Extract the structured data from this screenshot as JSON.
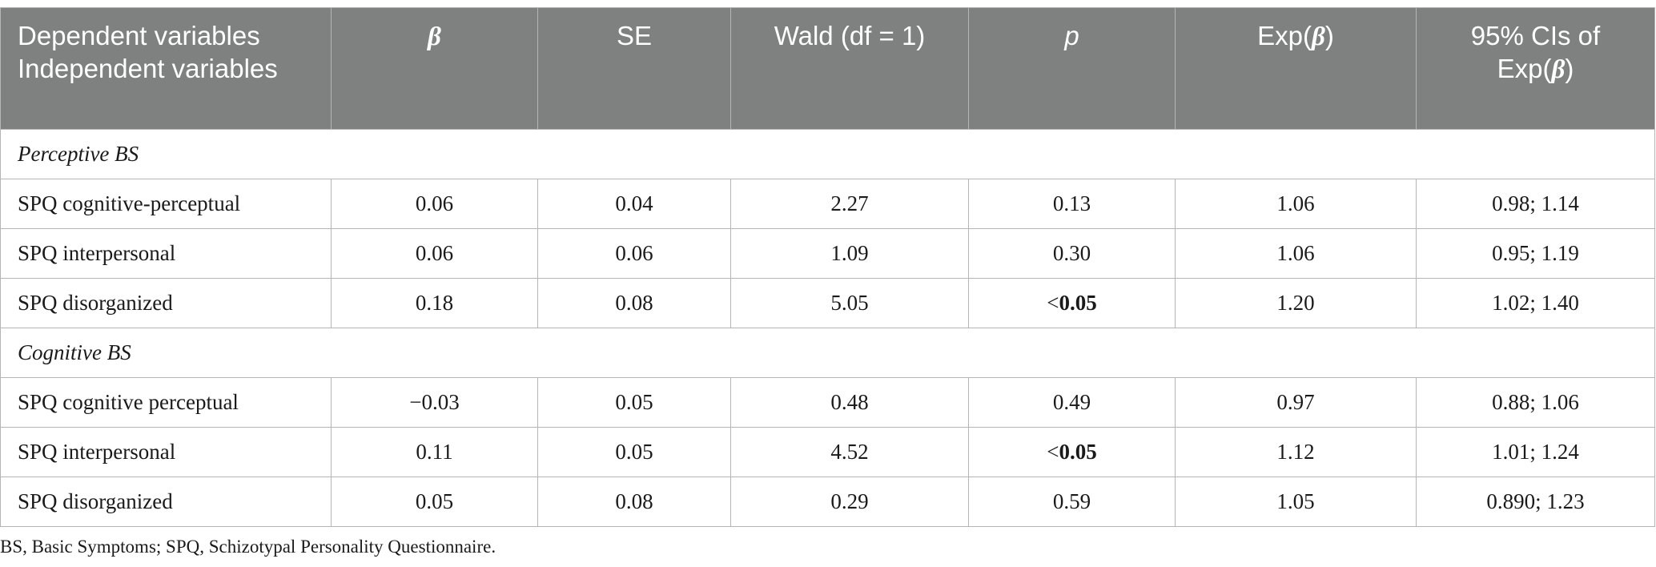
{
  "header": {
    "col0_line1": "Dependent variables",
    "col0_line2": "Independent variables",
    "beta": "β",
    "se": "SE",
    "wald": "Wald (df = 1)",
    "p": "p",
    "exp_prefix": "Exp(",
    "exp_beta": "β",
    "exp_suffix": ")",
    "ci_line1": "95% CIs of",
    "ci_prefix": "Exp(",
    "ci_beta": "β",
    "ci_suffix": ")"
  },
  "sections": [
    {
      "title": "Perceptive BS",
      "rows": [
        {
          "label": "SPQ cognitive-perceptual",
          "beta": "0.06",
          "se": "0.04",
          "wald": "2.27",
          "p_prefix": "",
          "p": "0.13",
          "p_bold": false,
          "exp": "1.06",
          "ci": "0.98; 1.14"
        },
        {
          "label": "SPQ interpersonal",
          "beta": "0.06",
          "se": "0.06",
          "wald": "1.09",
          "p_prefix": "",
          "p": "0.30",
          "p_bold": false,
          "exp": "1.06",
          "ci": "0.95; 1.19"
        },
        {
          "label": "SPQ disorganized",
          "beta": "0.18",
          "se": "0.08",
          "wald": "5.05",
          "p_prefix": "<",
          "p": "0.05",
          "p_bold": true,
          "exp": "1.20",
          "ci": "1.02; 1.40"
        }
      ]
    },
    {
      "title": "Cognitive BS",
      "rows": [
        {
          "label": "SPQ cognitive perceptual",
          "beta": "−0.03",
          "se": "0.05",
          "wald": "0.48",
          "p_prefix": "",
          "p": "0.49",
          "p_bold": false,
          "exp": "0.97",
          "ci": "0.88; 1.06"
        },
        {
          "label": "SPQ interpersonal",
          "beta": "0.11",
          "se": "0.05",
          "wald": "4.52",
          "p_prefix": "<",
          "p": "0.05",
          "p_bold": true,
          "exp": "1.12",
          "ci": "1.01; 1.24"
        },
        {
          "label": "SPQ disorganized",
          "beta": "0.05",
          "se": "0.08",
          "wald": "0.29",
          "p_prefix": "",
          "p": "0.59",
          "p_bold": false,
          "exp": "1.05",
          "ci": "0.890; 1.23"
        }
      ]
    }
  ],
  "footnote": "BS, Basic Symptoms; SPQ, Schizotypal Personality Questionnaire."
}
